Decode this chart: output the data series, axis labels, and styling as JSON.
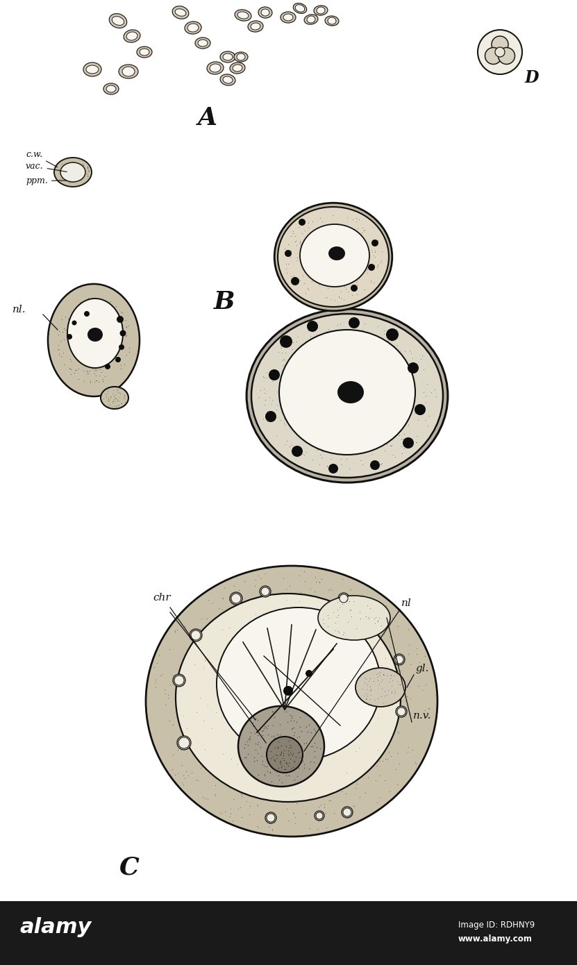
{
  "bg_color": "#ffffff",
  "label_A": "A",
  "label_B": "B",
  "label_C": "C",
  "label_D": "D",
  "annotation_cw": "c.w.",
  "annotation_vac": "vac.",
  "annotation_ppm": "ppm.",
  "annotation_nl_left": "nl.",
  "annotation_nl_right": "nl",
  "annotation_chr": "chr",
  "annotation_gl": "gl.",
  "annotation_nv": "n.v.",
  "cell_fill": "#e8e4dc",
  "cell_stipple": "#888880",
  "cell_edge": "#111111",
  "vacuole_fill": "#f8f6f2",
  "nucleus_fill": "#1a1a1a",
  "granule_fill": "#0d0d0d",
  "dark_region": "#b0a890",
  "alamy_bg": "#1a1a1a"
}
